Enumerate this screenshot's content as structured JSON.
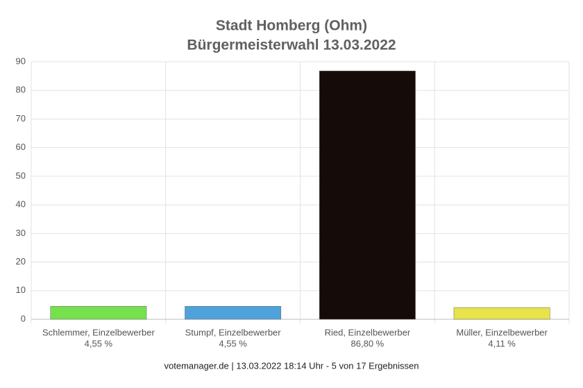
{
  "chart_data": {
    "type": "bar",
    "title": "Stadt Homberg (Ohm)",
    "subtitle": "Bürgermeisterwahl 13.03.2022",
    "categories": [
      "Schlemmer, Einzelbewerber",
      "Stumpf, Einzelbewerber",
      "Ried, Einzelbewerber",
      "Müller, Einzelbewerber"
    ],
    "values": [
      4.55,
      4.55,
      86.8,
      4.11
    ],
    "value_labels": [
      "4,55 %",
      "4,55 %",
      "86,80 %",
      "4,11 %"
    ],
    "colors": [
      "#77e04d",
      "#4fa3dc",
      "#150b09",
      "#e6e34b"
    ],
    "ylim": [
      0,
      90
    ],
    "yticks": [
      0,
      10,
      20,
      30,
      40,
      50,
      60,
      70,
      80,
      90
    ],
    "grid": true,
    "footer": "votemanager.de | 13.03.2022 18:14 Uhr - 5 von 17 Ergebnissen"
  }
}
